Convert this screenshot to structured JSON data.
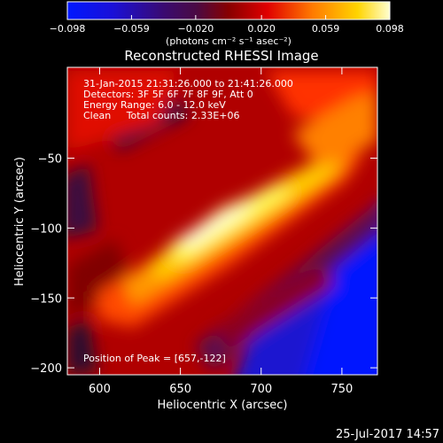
{
  "chart_data": {
    "type": "heatmap",
    "title": "Reconstructed RHESSI Image",
    "xlabel": "Heliocentric X (arcsec)",
    "ylabel": "Heliocentric Y (arcsec)",
    "xlim": [
      580,
      772
    ],
    "ylim": [
      -205,
      15
    ],
    "x_ticks": [
      600,
      650,
      700,
      750
    ],
    "y_ticks": [
      -50,
      -100,
      -150,
      -200
    ],
    "x_tick_labels": [
      "600",
      "650",
      "700",
      "750"
    ],
    "y_tick_labels": [
      "−50",
      "−100",
      "−150",
      "−200"
    ],
    "colorbar": {
      "range": [
        -0.098,
        0.098
      ],
      "ticks": [
        -0.098,
        -0.059,
        -0.02,
        0.02,
        0.059,
        0.098
      ],
      "tick_labels": [
        "−0.098",
        "−0.059",
        "−0.020",
        "0.020",
        "0.059",
        "0.098"
      ],
      "units": "(photons cm⁻² s⁻¹ asec⁻²)"
    },
    "annotations": [
      "31-Jan-2015 21:31:26.000 to 21:41:26.000",
      "Detectors: 3F 5F 6F 7F 8F 9F, Att 0",
      "Energy Range: 6.0 - 12.0 keV",
      "Clean     Total counts: 2.33E+06",
      "Position of Peak = [657,-122]"
    ],
    "peak": {
      "x": 657,
      "y": -122
    }
  },
  "footer_date": "25-Jul-2017 14:57"
}
